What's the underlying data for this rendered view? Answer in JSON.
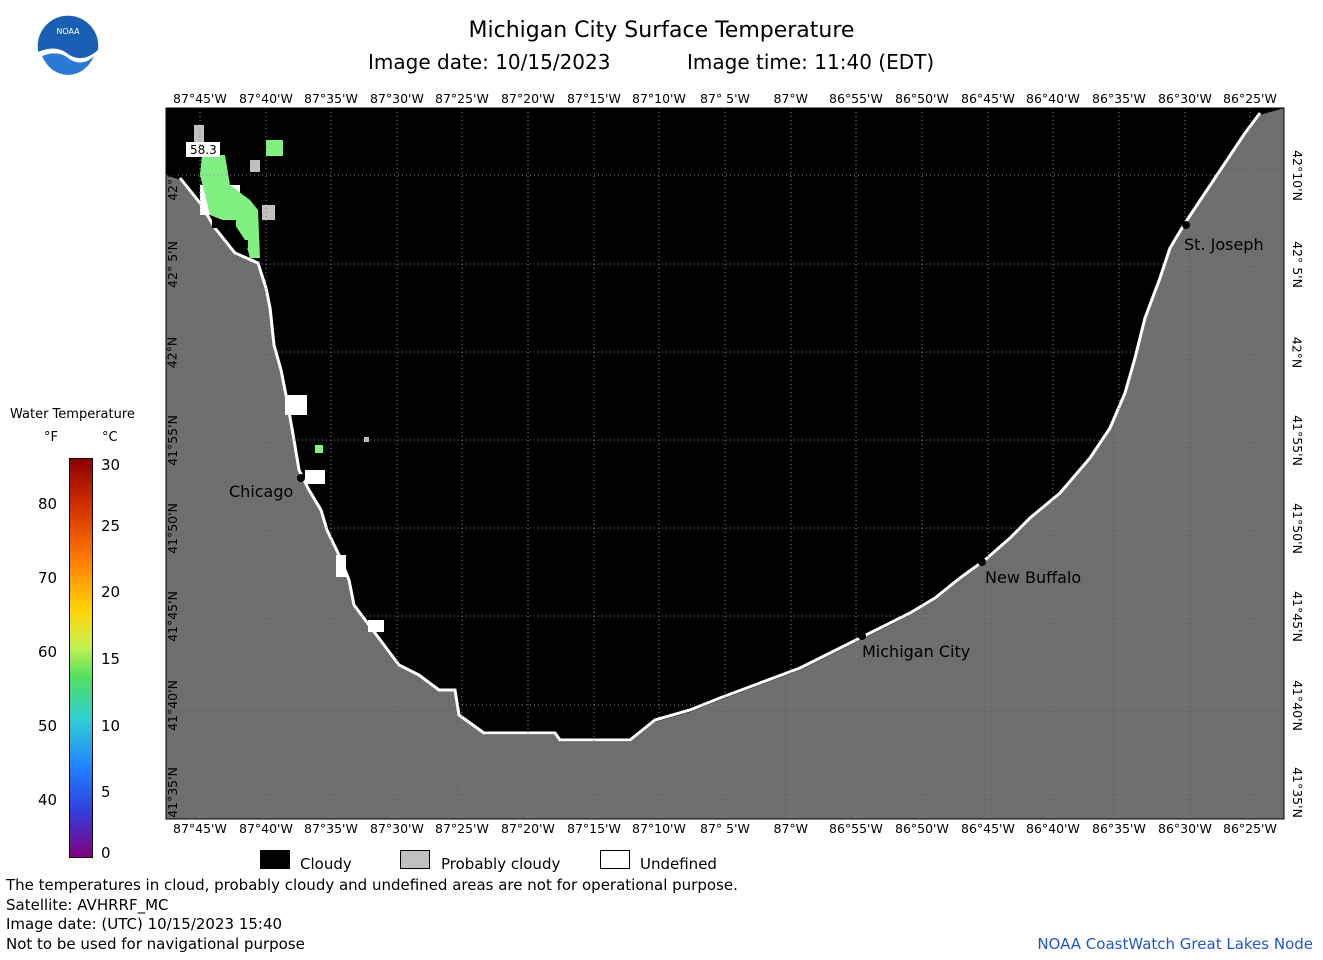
{
  "title": "Michigan City Surface Temperature",
  "image_date_label": "Image date: 10/15/2023",
  "image_time_label": "Image time: 11:40 (EDT)",
  "x_ticks": [
    "87°45'W",
    "87°40'W",
    "87°35'W",
    "87°30'W",
    "87°25'W",
    "87°20'W",
    "87°15'W",
    "87°10'W",
    "87° 5'W",
    "87°W",
    "86°55'W",
    "86°50'W",
    "86°45'W",
    "86°40'W",
    "86°35'W",
    "86°30'W",
    "86°25'W"
  ],
  "y_ticks": [
    "42°10'N",
    "42° 5'N",
    "42°N",
    "41°55'N",
    "41°50'N",
    "41°45'N",
    "41°40'N",
    "41°35'N"
  ],
  "sample_value": "58.3",
  "places": {
    "chicago": "Chicago",
    "st_joseph": "St. Joseph",
    "new_buffalo": "New Buffalo",
    "michigan_city": "Michigan City"
  },
  "colorbar": {
    "title": "Water Temperature",
    "unit_f": "°F",
    "unit_c": "°C",
    "f_ticks": [
      "80",
      "70",
      "60",
      "50",
      "40"
    ],
    "c_ticks": [
      "30",
      "25",
      "20",
      "15",
      "10",
      "5",
      "0"
    ]
  },
  "legend": {
    "cloudy": "Cloudy",
    "probably_cloudy": "Probably cloudy",
    "undefined": "Undefined"
  },
  "footer": {
    "disclaimer": "The temperatures in cloud, probably cloudy and undefined areas are not for operational purpose.",
    "satellite": "Satellite: AVHRRF_MC",
    "utc_date": "Image date: (UTC) 10/15/2023  15:40",
    "nav_warning": "Not to be used for navigational purpose",
    "credit": "NOAA CoastWatch Great Lakes Node"
  },
  "logo": "NOAA",
  "colors": {
    "land": "#6e6e6e",
    "cloud": "#000000",
    "probably_cloudy": "#c0c0c0",
    "undefined": "#ffffff",
    "water_warm": "#80f080",
    "credit": "#2255cc"
  }
}
